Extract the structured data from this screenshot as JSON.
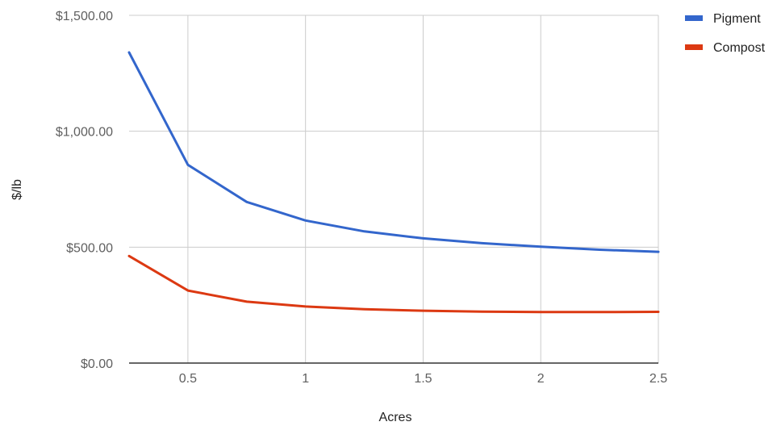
{
  "chart_data": {
    "type": "line",
    "title": "",
    "xlabel": "Acres",
    "ylabel": "$/lb",
    "xlim": [
      0.25,
      2.5
    ],
    "ylim": [
      0,
      1500
    ],
    "x": [
      0.25,
      0.5,
      0.75,
      1.0,
      1.25,
      1.5,
      1.75,
      2.0,
      2.25,
      2.5
    ],
    "x_ticks": [
      {
        "value": 0.5,
        "label": "0.5"
      },
      {
        "value": 1,
        "label": "1"
      },
      {
        "value": 1.5,
        "label": "1.5"
      },
      {
        "value": 2,
        "label": "2"
      },
      {
        "value": 2.5,
        "label": "2.5"
      }
    ],
    "y_ticks": [
      {
        "value": 0,
        "label": "$0.00"
      },
      {
        "value": 500,
        "label": "$500.00"
      },
      {
        "value": 1000,
        "label": "$1,000.00"
      },
      {
        "value": 1500,
        "label": "$1,500.00"
      }
    ],
    "grid": true,
    "legend_position": "top-right",
    "series": [
      {
        "name": "Pigment",
        "color": "#3366cc",
        "values": [
          1340,
          855,
          695,
          615,
          568,
          538,
          517,
          502,
          489,
          480
        ]
      },
      {
        "name": "Compost",
        "color": "#dc3912",
        "values": [
          462,
          313,
          265,
          244,
          232,
          226,
          222,
          220,
          220,
          221
        ]
      }
    ]
  }
}
